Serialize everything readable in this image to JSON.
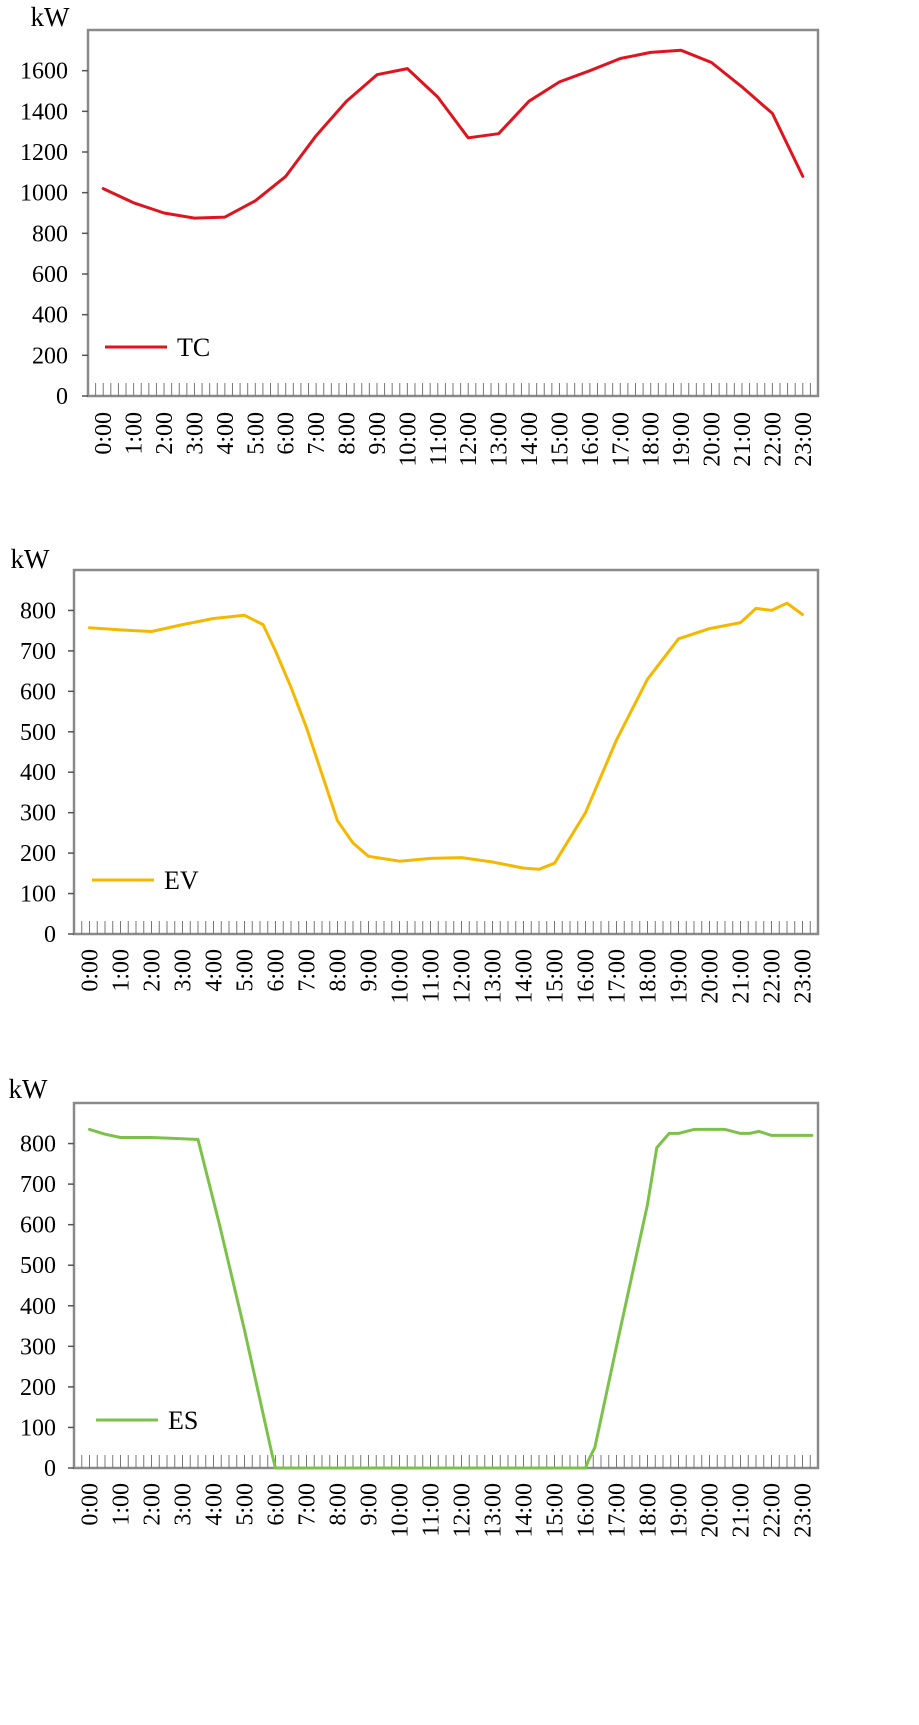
{
  "chart_data": [
    {
      "type": "line",
      "ylabel": "kW",
      "xlabel": "",
      "ylim": [
        0,
        1800
      ],
      "yticks": [
        0,
        200,
        400,
        600,
        800,
        1000,
        1200,
        1400,
        1600
      ],
      "categories": [
        "0:00",
        "1:00",
        "2:00",
        "3:00",
        "4:00",
        "5:00",
        "6:00",
        "7:00",
        "8:00",
        "9:00",
        "10:00",
        "11:00",
        "12:00",
        "13:00",
        "14:00",
        "15:00",
        "16:00",
        "17:00",
        "18:00",
        "19:00",
        "20:00",
        "21:00",
        "22:00",
        "23:00"
      ],
      "legend_position": "bottom-left",
      "series": [
        {
          "name": "TC",
          "color": "#e0141e",
          "x": [
            0,
            1,
            2,
            3,
            4,
            5,
            6,
            7,
            8,
            9,
            10,
            11,
            12,
            13,
            14,
            15,
            16,
            17,
            18,
            19,
            20,
            21,
            22,
            23
          ],
          "values": [
            1020,
            950,
            900,
            875,
            880,
            960,
            1080,
            1280,
            1450,
            1580,
            1610,
            1470,
            1270,
            1290,
            1450,
            1545,
            1600,
            1660,
            1690,
            1700,
            1640,
            1520,
            1390,
            1080
          ]
        }
      ]
    },
    {
      "type": "line",
      "ylabel": "kW",
      "xlabel": "",
      "ylim": [
        0,
        900
      ],
      "yticks": [
        0,
        100,
        200,
        300,
        400,
        500,
        600,
        700,
        800
      ],
      "categories": [
        "0:00",
        "1:00",
        "2:00",
        "3:00",
        "4:00",
        "5:00",
        "6:00",
        "7:00",
        "8:00",
        "9:00",
        "10:00",
        "11:00",
        "12:00",
        "13:00",
        "14:00",
        "15:00",
        "16:00",
        "17:00",
        "18:00",
        "19:00",
        "20:00",
        "21:00",
        "22:00",
        "23:00"
      ],
      "legend_position": "bottom-left",
      "series": [
        {
          "name": "EV",
          "color": "#f5b800",
          "x": [
            0,
            1,
            2,
            3,
            4,
            5,
            5.6,
            6,
            6.5,
            7,
            8,
            8.5,
            9,
            10,
            11,
            12,
            13,
            14,
            14.5,
            15,
            16,
            17,
            18,
            19,
            20,
            21,
            21.5,
            22,
            22.5,
            23
          ],
          "values": [
            757,
            752,
            748,
            765,
            780,
            788,
            765,
            700,
            610,
            510,
            280,
            225,
            192,
            180,
            187,
            189,
            178,
            163,
            160,
            175,
            300,
            480,
            630,
            730,
            755,
            770,
            805,
            800,
            818,
            790
          ]
        }
      ]
    },
    {
      "type": "line",
      "ylabel": "kW",
      "xlabel": "",
      "ylim": [
        0,
        900
      ],
      "yticks": [
        0,
        100,
        200,
        300,
        400,
        500,
        600,
        700,
        800
      ],
      "categories": [
        "0:00",
        "1:00",
        "2:00",
        "3:00",
        "4:00",
        "5:00",
        "6:00",
        "7:00",
        "8:00",
        "9:00",
        "10:00",
        "11:00",
        "12:00",
        "13:00",
        "14:00",
        "15:00",
        "16:00",
        "17:00",
        "18:00",
        "19:00",
        "20:00",
        "21:00",
        "22:00",
        "23:00"
      ],
      "legend_position": "bottom-left",
      "series": [
        {
          "name": "ES",
          "color": "#7cc24a",
          "x": [
            0,
            0.5,
            1,
            2,
            3,
            3.5,
            4.2,
            5,
            5.9,
            6,
            7,
            8,
            9,
            10,
            11,
            12,
            13,
            14,
            15,
            16,
            16.1,
            16.3,
            17,
            18,
            18.3,
            18.7,
            19,
            19.5,
            20,
            20.5,
            21,
            21.3,
            21.6,
            22,
            22.5,
            23,
            23.3
          ],
          "values": [
            835,
            823,
            815,
            815,
            812,
            810,
            598,
            340,
            30,
            0,
            0,
            0,
            0,
            0,
            0,
            0,
            0,
            0,
            0,
            0,
            20,
            50,
            300,
            650,
            790,
            825,
            825,
            835,
            835,
            835,
            825,
            825,
            830,
            820,
            820,
            820,
            820
          ]
        }
      ]
    }
  ]
}
